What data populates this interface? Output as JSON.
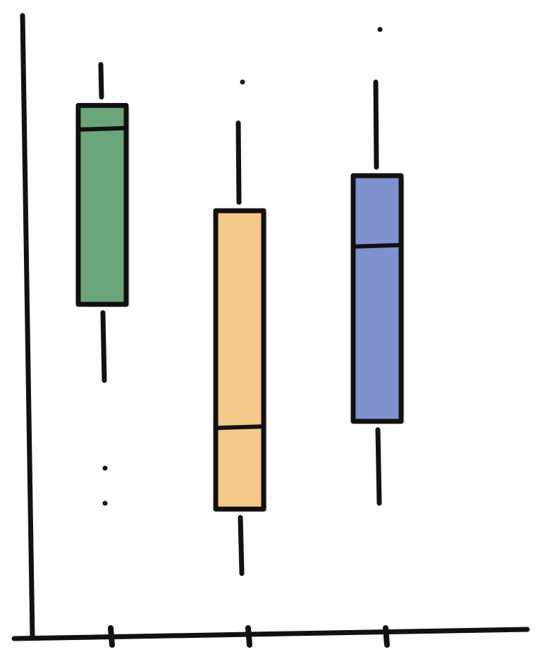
{
  "chart_data": {
    "type": "box",
    "title": "",
    "xlabel": "",
    "ylabel": "",
    "ylim": [
      0,
      100
    ],
    "grid": false,
    "categories": [
      "",
      "",
      ""
    ],
    "boxes": [
      {
        "whislo": 41,
        "q1": 54,
        "med": 84,
        "q3": 88,
        "whishi": 95,
        "fliers": [
          20,
          26
        ],
        "color": "#6aa67a"
      },
      {
        "whislo": 8,
        "q1": 19,
        "med": 33,
        "q3": 70,
        "whishi": 85,
        "fliers": [
          92
        ],
        "color": "#f5c98a"
      },
      {
        "whislo": 20,
        "q1": 34,
        "med": 64,
        "q3": 76,
        "whishi": 92,
        "fliers": [
          101
        ],
        "color": "#7f92cf"
      }
    ]
  }
}
